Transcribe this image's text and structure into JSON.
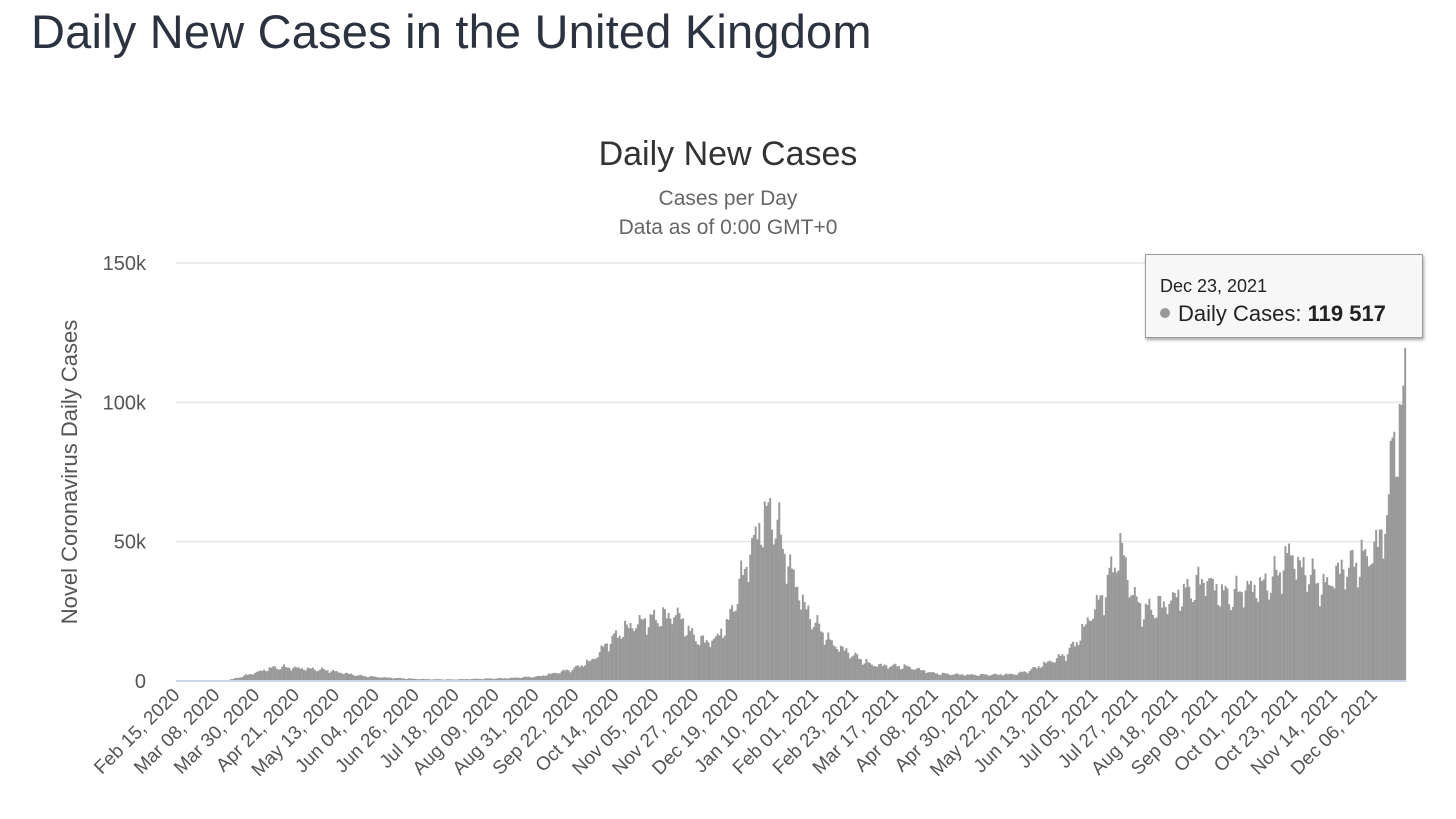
{
  "page": {
    "title": "Daily New Cases in the United Kingdom"
  },
  "chart_data": {
    "type": "bar",
    "title": "Daily New Cases",
    "subtitle_lines": [
      "Cases per Day",
      "Data as of 0:00 GMT+0"
    ],
    "ylabel": "Novel Coronavirus Daily Cases",
    "xlabel": "",
    "ylim": [
      0,
      150000
    ],
    "y_ticks": [
      {
        "value": 0,
        "label": "0"
      },
      {
        "value": 50000,
        "label": "50k"
      },
      {
        "value": 100000,
        "label": "100k"
      },
      {
        "value": 150000,
        "label": "150k"
      }
    ],
    "grid": true,
    "legend": "none",
    "bar_color": "#999999",
    "grid_color": "#e6e6e6",
    "axis_color": "#ccd6eb",
    "x_start": "2020-02-15",
    "x_end": "2021-12-23",
    "x_tick_labels": [
      "Feb 15, 2020",
      "Mar 08, 2020",
      "Mar 30, 2020",
      "Apr 21, 2020",
      "May 13, 2020",
      "Jun 04, 2020",
      "Jun 26, 2020",
      "Jul 18, 2020",
      "Aug 09, 2020",
      "Aug 31, 2020",
      "Sep 22, 2020",
      "Oct 14, 2020",
      "Nov 05, 2020",
      "Nov 27, 2020",
      "Dec 19, 2020",
      "Jan 10, 2021",
      "Feb 01, 2021",
      "Feb 23, 2021",
      "Mar 17, 2021",
      "Apr 08, 2021",
      "Apr 30, 2021",
      "May 22, 2021",
      "Jun 13, 2021",
      "Jul 05, 2021",
      "Jul 27, 2021",
      "Aug 18, 2021",
      "Sep 09, 2021",
      "Oct 01, 2021",
      "Oct 23, 2021",
      "Nov 14, 2021",
      "Dec 06, 2021"
    ],
    "series": [
      {
        "name": "Daily Cases",
        "points": [
          [
            "2020-02-15",
            0
          ],
          [
            "2020-03-01",
            20
          ],
          [
            "2020-03-10",
            100
          ],
          [
            "2020-03-17",
            700
          ],
          [
            "2020-03-25",
            2200
          ],
          [
            "2020-04-01",
            3500
          ],
          [
            "2020-04-08",
            4800
          ],
          [
            "2020-04-15",
            4900
          ],
          [
            "2020-04-22",
            4600
          ],
          [
            "2020-04-29",
            4300
          ],
          [
            "2020-05-06",
            4000
          ],
          [
            "2020-05-13",
            3300
          ],
          [
            "2020-05-20",
            2500
          ],
          [
            "2020-05-27",
            1800
          ],
          [
            "2020-06-03",
            1500
          ],
          [
            "2020-06-10",
            1200
          ],
          [
            "2020-06-17",
            1000
          ],
          [
            "2020-06-24",
            800
          ],
          [
            "2020-07-01",
            650
          ],
          [
            "2020-07-15",
            550
          ],
          [
            "2020-08-01",
            800
          ],
          [
            "2020-08-15",
            1000
          ],
          [
            "2020-09-01",
            1600
          ],
          [
            "2020-09-10",
            2800
          ],
          [
            "2020-09-20",
            4200
          ],
          [
            "2020-10-01",
            7500
          ],
          [
            "2020-10-10",
            14000
          ],
          [
            "2020-10-20",
            19000
          ],
          [
            "2020-10-27",
            21000
          ],
          [
            "2020-11-03",
            22000
          ],
          [
            "2020-11-10",
            23000
          ],
          [
            "2020-11-17",
            24000
          ],
          [
            "2020-11-24",
            17000
          ],
          [
            "2020-12-01",
            14000
          ],
          [
            "2020-12-08",
            15000
          ],
          [
            "2020-12-15",
            21000
          ],
          [
            "2020-12-22",
            36000
          ],
          [
            "2020-12-29",
            50000
          ],
          [
            "2021-01-05",
            60000
          ],
          [
            "2021-01-10",
            58000
          ],
          [
            "2021-01-14",
            48000
          ],
          [
            "2021-01-20",
            37000
          ],
          [
            "2021-01-27",
            25000
          ],
          [
            "2021-02-03",
            19000
          ],
          [
            "2021-02-10",
            13500
          ],
          [
            "2021-02-17",
            11000
          ],
          [
            "2021-02-24",
            8500
          ],
          [
            "2021-03-03",
            6000
          ],
          [
            "2021-03-10",
            5500
          ],
          [
            "2021-03-17",
            5400
          ],
          [
            "2021-03-24",
            5000
          ],
          [
            "2021-03-31",
            4000
          ],
          [
            "2021-04-07",
            2800
          ],
          [
            "2021-04-14",
            2500
          ],
          [
            "2021-04-28",
            2200
          ],
          [
            "2021-05-12",
            2300
          ],
          [
            "2021-05-22",
            2500
          ],
          [
            "2021-05-29",
            3500
          ],
          [
            "2021-06-05",
            5500
          ],
          [
            "2021-06-12",
            7500
          ],
          [
            "2021-06-19",
            9500
          ],
          [
            "2021-06-26",
            15000
          ],
          [
            "2021-07-03",
            24000
          ],
          [
            "2021-07-10",
            31000
          ],
          [
            "2021-07-17",
            45000
          ],
          [
            "2021-07-21",
            46000
          ],
          [
            "2021-07-24",
            34000
          ],
          [
            "2021-07-31",
            25000
          ],
          [
            "2021-08-07",
            26000
          ],
          [
            "2021-08-14",
            28000
          ],
          [
            "2021-08-21",
            31000
          ],
          [
            "2021-08-28",
            33000
          ],
          [
            "2021-09-04",
            37000
          ],
          [
            "2021-09-11",
            32000
          ],
          [
            "2021-09-18",
            30000
          ],
          [
            "2021-09-25",
            33000
          ],
          [
            "2021-10-02",
            33500
          ],
          [
            "2021-10-09",
            35000
          ],
          [
            "2021-10-16",
            40000
          ],
          [
            "2021-10-21",
            47000
          ],
          [
            "2021-10-25",
            41000
          ],
          [
            "2021-11-01",
            38000
          ],
          [
            "2021-11-08",
            33000
          ],
          [
            "2021-11-15",
            38500
          ],
          [
            "2021-11-22",
            41000
          ],
          [
            "2021-11-29",
            43000
          ],
          [
            "2021-12-06",
            47000
          ],
          [
            "2021-12-11",
            54000
          ],
          [
            "2021-12-14",
            62000
          ],
          [
            "2021-12-16",
            88000
          ],
          [
            "2021-12-18",
            90000
          ],
          [
            "2021-12-20",
            85000
          ],
          [
            "2021-12-21",
            90000
          ],
          [
            "2021-12-22",
            106000
          ],
          [
            "2021-12-23",
            119517
          ]
        ]
      }
    ]
  },
  "tooltip": {
    "date": "Dec 23, 2021",
    "series_label": "Daily Cases:",
    "value": "119 517"
  }
}
